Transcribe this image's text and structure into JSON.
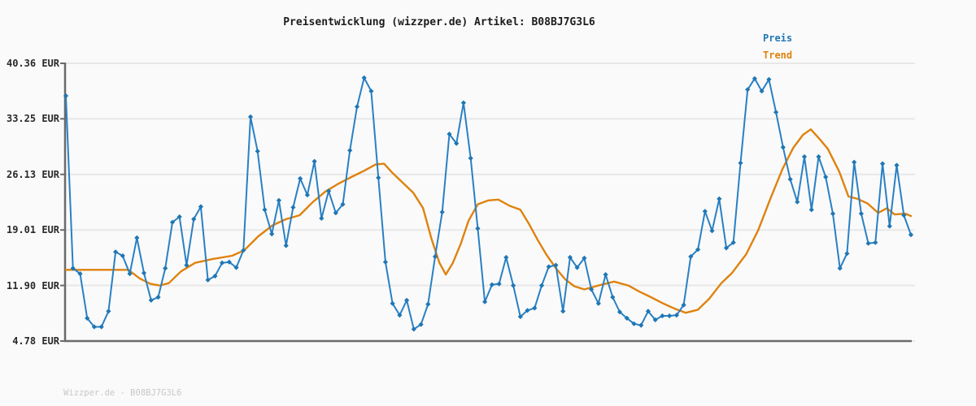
{
  "title": "Preisentwicklung (wizzper.de) Artikel: B08BJ7G3L6",
  "legend": {
    "items": [
      {
        "label": "Preis",
        "color": "#1f77b4"
      },
      {
        "label": "Trend",
        "color": "#df820e"
      }
    ]
  },
  "watermark": "Wizzper.de - B08BJ7G3L6",
  "y_axis": {
    "tick_labels": [
      "40.36 EUR",
      "33.25 EUR",
      "26.13 EUR",
      "19.01 EUR",
      "11.90 EUR",
      "4.78 EUR"
    ],
    "tick_values": [
      40.36,
      33.25,
      26.13,
      19.01,
      11.9,
      4.78
    ],
    "unit": "EUR"
  },
  "colors": {
    "page_bg": "#fafafa",
    "gridline": "#e8e8e8",
    "axis": "#6a6a6a",
    "preis_line": "#2980c4",
    "preis_marker": "#1f77b4",
    "trend_line": "#df820e",
    "title_text": "#1c1c1c",
    "watermark_text": "#c8c8c8"
  },
  "chart_data": {
    "type": "line",
    "title": "Preisentwicklung (wizzper.de) Artikel: B08BJ7G3L6",
    "xlabel": "",
    "ylabel": "EUR",
    "ylim": [
      4.78,
      40.36
    ],
    "y_ticks": [
      40.36,
      33.25,
      26.13,
      19.01,
      11.9,
      4.78
    ],
    "grid": true,
    "legend_position": "top-right",
    "x_axis_labels_visible": false,
    "series": [
      {
        "name": "Preis",
        "style": "line+markers",
        "marker": "diamond",
        "color": "#1f77b4",
        "values": [
          36.2,
          14.1,
          13.4,
          7.7,
          6.6,
          6.6,
          8.6,
          16.2,
          15.7,
          13.4,
          18.0,
          13.5,
          10.0,
          10.4,
          14.1,
          20.0,
          20.7,
          14.5,
          20.4,
          22.0,
          12.6,
          13.1,
          14.8,
          14.9,
          14.2,
          16.4,
          33.5,
          29.1,
          21.6,
          18.5,
          22.8,
          17.0,
          21.9,
          25.6,
          23.5,
          27.8,
          20.5,
          24.0,
          21.2,
          22.3,
          29.2,
          34.8,
          38.5,
          36.8,
          25.7,
          14.9,
          9.6,
          8.1,
          10.0,
          6.3,
          6.9,
          9.5,
          15.6,
          21.3,
          31.3,
          30.1,
          35.3,
          28.2,
          19.2,
          9.8,
          12.0,
          12.1,
          15.5,
          11.9,
          7.9,
          8.7,
          9.0,
          11.9,
          14.3,
          14.5,
          8.6,
          15.5,
          14.2,
          15.4,
          11.4,
          9.6,
          13.3,
          10.4,
          8.5,
          7.7,
          7.0,
          6.8,
          8.6,
          7.5,
          8.0,
          8.0,
          8.1,
          9.4,
          15.6,
          16.5,
          21.4,
          18.9,
          23.0,
          16.7,
          17.4,
          27.6,
          37.0,
          38.4,
          36.8,
          38.3,
          34.1,
          29.6,
          25.5,
          22.6,
          28.4,
          21.6,
          28.4,
          25.8,
          21.1,
          14.1,
          16.0,
          27.7,
          21.1,
          17.3,
          17.4,
          27.5,
          19.5,
          27.3,
          20.9,
          18.4
        ]
      },
      {
        "name": "Trend",
        "style": "line",
        "marker": "none",
        "color": "#df820e",
        "points": [
          [
            0,
            13.9
          ],
          [
            8.8,
            13.9
          ],
          [
            10.4,
            12.8
          ],
          [
            11.9,
            12.1
          ],
          [
            13.2,
            11.9
          ],
          [
            14.5,
            12.2
          ],
          [
            16.2,
            13.7
          ],
          [
            18.2,
            14.8
          ],
          [
            20.7,
            15.3
          ],
          [
            23.4,
            15.7
          ],
          [
            25.1,
            16.4
          ],
          [
            27.1,
            18.2
          ],
          [
            29.1,
            19.6
          ],
          [
            31.0,
            20.4
          ],
          [
            32.9,
            20.9
          ],
          [
            34.8,
            22.6
          ],
          [
            36.5,
            23.9
          ],
          [
            38.3,
            24.9
          ],
          [
            40.2,
            25.8
          ],
          [
            42.0,
            26.6
          ],
          [
            43.6,
            27.4
          ],
          [
            44.8,
            27.5
          ],
          [
            45.9,
            26.4
          ],
          [
            47.4,
            25.1
          ],
          [
            48.9,
            23.8
          ],
          [
            50.3,
            21.8
          ],
          [
            51.5,
            17.8
          ],
          [
            52.6,
            14.8
          ],
          [
            53.5,
            13.3
          ],
          [
            54.5,
            14.8
          ],
          [
            55.6,
            17.2
          ],
          [
            56.7,
            20.2
          ],
          [
            58.0,
            22.3
          ],
          [
            59.5,
            22.8
          ],
          [
            60.9,
            22.9
          ],
          [
            62.5,
            22.1
          ],
          [
            64.0,
            21.6
          ],
          [
            65.2,
            19.8
          ],
          [
            66.4,
            17.8
          ],
          [
            67.7,
            15.8
          ],
          [
            69.1,
            14.0
          ],
          [
            70.3,
            12.7
          ],
          [
            71.6,
            11.8
          ],
          [
            73.0,
            11.4
          ],
          [
            75.0,
            11.9
          ],
          [
            77.2,
            12.4
          ],
          [
            79.2,
            11.9
          ],
          [
            80.8,
            11.1
          ],
          [
            82.4,
            10.4
          ],
          [
            84.1,
            9.6
          ],
          [
            85.8,
            8.9
          ],
          [
            87.3,
            8.4
          ],
          [
            89.0,
            8.8
          ],
          [
            90.6,
            10.2
          ],
          [
            92.3,
            12.2
          ],
          [
            93.8,
            13.5
          ],
          [
            95.8,
            15.9
          ],
          [
            97.5,
            19.0
          ],
          [
            99.2,
            23.0
          ],
          [
            100.9,
            26.8
          ],
          [
            102.4,
            29.5
          ],
          [
            103.8,
            31.2
          ],
          [
            104.9,
            31.9
          ],
          [
            106.2,
            30.6
          ],
          [
            107.3,
            29.4
          ],
          [
            108.9,
            26.5
          ],
          [
            110.2,
            23.3
          ],
          [
            111.5,
            23.0
          ],
          [
            112.9,
            22.4
          ],
          [
            114.4,
            21.2
          ],
          [
            115.6,
            21.8
          ],
          [
            116.7,
            21.0
          ],
          [
            118.2,
            21.1
          ],
          [
            119,
            20.8
          ]
        ]
      }
    ]
  }
}
